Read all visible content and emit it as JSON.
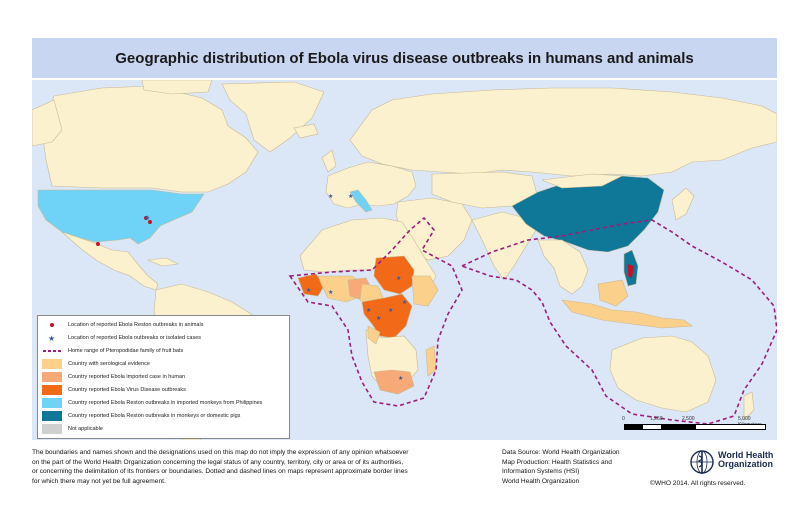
{
  "title": "Geographic distribution of Ebola virus disease outbreaks in humans and animals",
  "colors": {
    "ocean": "#dbe6f7",
    "land_default": "#fbf1cf",
    "border": "#c9b991",
    "serological": "#fbd08a",
    "imported_case": "#f7a977",
    "evd_outbreak": "#f26a18",
    "reston_imported_monkeys": "#6fd3f7",
    "reston_monkeys_pigs": "#0f7797",
    "not_applicable": "#cfcfcf",
    "bat_range": "#9b1f7a",
    "dot": "#c4122c",
    "star": "#3a55a0"
  },
  "legend": {
    "items": [
      {
        "label": "Location of reported Ebola Reston outbreaks in animals",
        "symbol": "red-dot"
      },
      {
        "label": "Location of reported Ebola outbreaks or isolated cases",
        "symbol": "blue-star"
      },
      {
        "label": "Home range of Pteropodidae family of fruit bats",
        "symbol": "dashed-line"
      },
      {
        "label": "Country with serological evidence",
        "symbol": "swatch-serological"
      },
      {
        "label": "Country reported Ebola imported case in human",
        "symbol": "swatch-imported"
      },
      {
        "label": "Country reported Ebola Virus Disease outbreaks",
        "symbol": "swatch-evd"
      },
      {
        "label": "Country reported Ebola Reston outbreaks in imported monkeys from Philippines",
        "symbol": "swatch-reston-imported"
      },
      {
        "label": "Country reported Ebola Reston outbreaks in monkeys or domestic pigs",
        "symbol": "swatch-reston-pigs"
      },
      {
        "label": "Not applicable",
        "symbol": "swatch-na"
      }
    ]
  },
  "scale": {
    "labels": [
      "0",
      "1,250",
      "2,500",
      "5,000 Kilometers"
    ]
  },
  "disclaimer": [
    "The boundaries and names shown and the designations used on this map do not imply the expression of any opinion whatsoever",
    "on the part of the World Health Organization concerning the legal status of any country, territory, city or area or of its authorities,",
    "or concerning the delimitation of its frontiers or boundaries. Dotted and dashed lines on maps represent approximate border lines",
    "for which there may not yet be full agreement."
  ],
  "credits": [
    "Data Source: World Health Organization",
    "Map Production: Health Statistics and",
    "Information Systems (HSI)",
    "World Health Organization"
  ],
  "who": {
    "line1": "World Health",
    "line2": "Organization"
  },
  "copyright": "©WHO 2014. All rights reserved."
}
